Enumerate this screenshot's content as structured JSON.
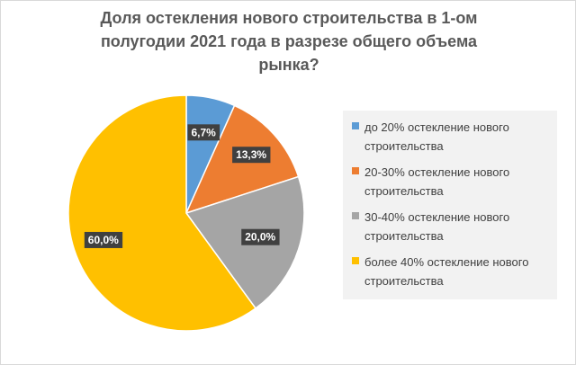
{
  "chart_data": {
    "type": "pie",
    "title_lines": [
      "Доля остекления нового строительства в 1-ом",
      "полугодии 2021 года в разрезе общего объема",
      "рынка?"
    ],
    "categories": [
      [
        "до 20% остекление нового",
        "строительства"
      ],
      [
        "20-30% остекление нового",
        "строительства"
      ],
      [
        "30-40% остекление нового",
        "строительства"
      ],
      [
        "более 40% остекление нового",
        "строительства"
      ]
    ],
    "values": [
      6.7,
      13.3,
      20.0,
      60.0
    ],
    "data_labels": [
      "6,7%",
      "13,3%",
      "20,0%",
      "60,0%"
    ],
    "colors": [
      "#5b9bd5",
      "#ed7d31",
      "#a5a5a5",
      "#ffc000"
    ],
    "legend_position": "right",
    "start_angle": "12 o'clock, clockwise"
  }
}
